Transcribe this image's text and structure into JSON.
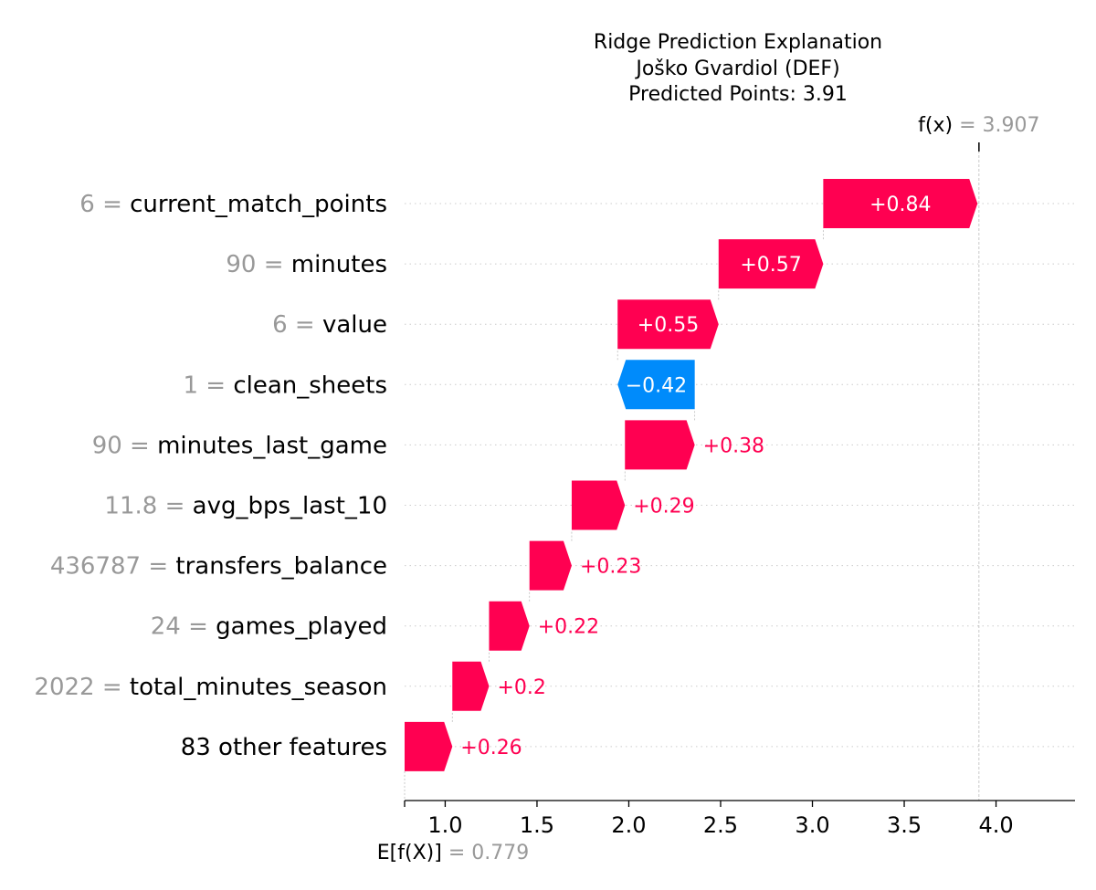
{
  "colors": {
    "positive": "#ff0051",
    "negative": "#008bfb",
    "muted": "#999999",
    "grid": "#cccccc",
    "text": "#000000"
  },
  "chart_data": {
    "type": "waterfall",
    "title_lines": [
      "Ridge Prediction Explanation",
      "Joško Gvardiol (DEF)",
      "Predicted Points: 3.91"
    ],
    "base_value": 0.779,
    "base_value_text": "= 0.779",
    "base_value_key": "E[f(X)]",
    "output_value": 3.907,
    "output_value_text": "= 3.907",
    "output_value_key": "f(x)",
    "xlim": [
      0.779,
      4.43
    ],
    "xticks": [
      1.0,
      1.5,
      2.0,
      2.5,
      3.0,
      3.5,
      4.0
    ],
    "xtick_labels": [
      "1.0",
      "1.5",
      "2.0",
      "2.5",
      "3.0",
      "3.5",
      "4.0"
    ],
    "features": [
      {
        "value": "6",
        "name": "current_match_points",
        "contribution": 0.84,
        "label": "+0.84"
      },
      {
        "value": "90",
        "name": "minutes",
        "contribution": 0.57,
        "label": "+0.57"
      },
      {
        "value": "6",
        "name": "value",
        "contribution": 0.55,
        "label": "+0.55"
      },
      {
        "value": "1",
        "name": "clean_sheets",
        "contribution": -0.42,
        "label": "−0.42"
      },
      {
        "value": "90",
        "name": "minutes_last_game",
        "contribution": 0.38,
        "label": "+0.38"
      },
      {
        "value": "11.8",
        "name": "avg_bps_last_10",
        "contribution": 0.29,
        "label": "+0.29"
      },
      {
        "value": "436787",
        "name": "transfers_balance",
        "contribution": 0.23,
        "label": "+0.23"
      },
      {
        "value": "24",
        "name": "games_played",
        "contribution": 0.22,
        "label": "+0.22"
      },
      {
        "value": "2022",
        "name": "total_minutes_season",
        "contribution": 0.2,
        "label": "+0.2"
      },
      {
        "value": "",
        "name": "83 other features",
        "contribution": 0.26,
        "label": "+0.26"
      }
    ]
  }
}
